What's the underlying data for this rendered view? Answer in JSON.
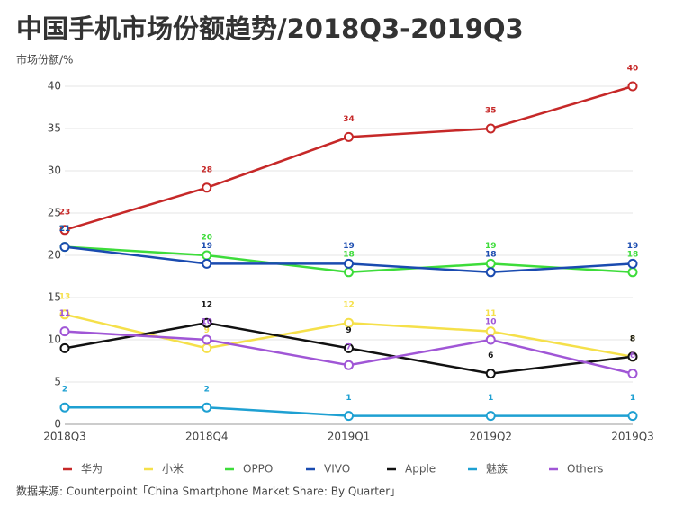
{
  "chart_data": {
    "type": "line",
    "title": "中国手机市场份额趋势/2018Q3-2019Q3",
    "y_label": "市场份额/%",
    "source": "数据来源: Counterpoint「China Smartphone Market Share: By Quarter」",
    "categories": [
      "2018Q3",
      "2018Q4",
      "2019Q1",
      "2019Q2",
      "2019Q3"
    ],
    "series": [
      {
        "name": "华为",
        "color": "#c62828",
        "values": [
          23,
          28,
          34,
          35,
          40
        ]
      },
      {
        "name": "小米",
        "color": "#f5e04a",
        "values": [
          13,
          9,
          12,
          11,
          8
        ]
      },
      {
        "name": "OPPO",
        "color": "#3ddc3a",
        "values": [
          21,
          20,
          18,
          19,
          18
        ]
      },
      {
        "name": "VIVO",
        "color": "#1a4bb0",
        "values": [
          21,
          19,
          19,
          18,
          19
        ]
      },
      {
        "name": "Apple",
        "color": "#111111",
        "values": [
          9,
          12,
          9,
          6,
          8
        ]
      },
      {
        "name": "魅族",
        "color": "#1ea0d2",
        "values": [
          2,
          2,
          1,
          1,
          1
        ]
      },
      {
        "name": "Others",
        "color": "#a056d6",
        "values": [
          11,
          10,
          7,
          10,
          6
        ]
      }
    ],
    "ylim": [
      0,
      40
    ],
    "yticks": [
      0,
      5,
      10,
      15,
      20,
      25,
      30,
      35,
      40
    ],
    "grid": true,
    "legend": "bottom"
  }
}
